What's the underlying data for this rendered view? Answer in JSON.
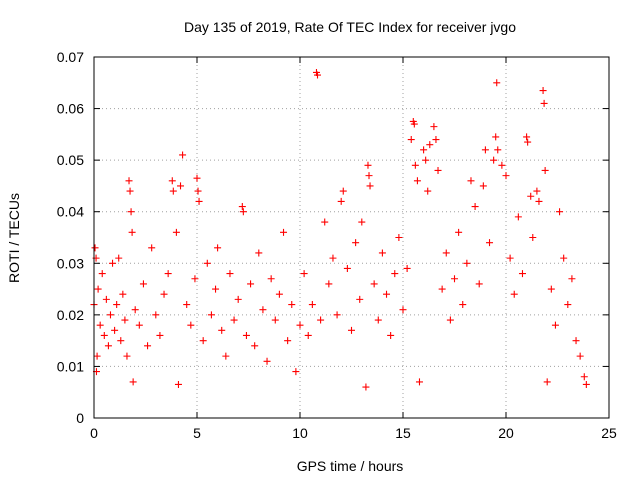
{
  "chart_data": {
    "type": "scatter",
    "title": "Day 135 of 2019, Rate Of TEC Index for receiver jvgo",
    "xlabel": "GPS time / hours",
    "ylabel": "ROTI / TECUs",
    "xlim": [
      0,
      25
    ],
    "ylim": [
      0,
      0.07
    ],
    "xticks": [
      0,
      5,
      10,
      15,
      20,
      25
    ],
    "xtick_labels": [
      "0",
      "5",
      "10",
      "15",
      "20",
      "25"
    ],
    "yticks": [
      0,
      0.01,
      0.02,
      0.03,
      0.04,
      0.05,
      0.06,
      0.07
    ],
    "ytick_labels": [
      "0",
      "0.01",
      "0.02",
      "0.03",
      "0.04",
      "0.05",
      "0.06",
      "0.07"
    ],
    "grid": true,
    "marker": "+",
    "marker_color": "#ff0000",
    "series": [
      {
        "name": "ROTI",
        "points": [
          [
            0.0,
            0.022
          ],
          [
            0.05,
            0.033
          ],
          [
            0.1,
            0.031
          ],
          [
            0.12,
            0.009
          ],
          [
            0.15,
            0.012
          ],
          [
            0.2,
            0.025
          ],
          [
            0.3,
            0.018
          ],
          [
            0.4,
            0.028
          ],
          [
            0.5,
            0.016
          ],
          [
            0.6,
            0.023
          ],
          [
            0.7,
            0.014
          ],
          [
            0.8,
            0.02
          ],
          [
            0.9,
            0.03
          ],
          [
            1.0,
            0.017
          ],
          [
            1.1,
            0.022
          ],
          [
            1.2,
            0.031
          ],
          [
            1.3,
            0.015
          ],
          [
            1.4,
            0.024
          ],
          [
            1.5,
            0.019
          ],
          [
            1.6,
            0.012
          ],
          [
            1.7,
            0.046
          ],
          [
            1.75,
            0.044
          ],
          [
            1.8,
            0.04
          ],
          [
            1.85,
            0.036
          ],
          [
            1.9,
            0.007
          ],
          [
            2.0,
            0.021
          ],
          [
            2.2,
            0.018
          ],
          [
            2.4,
            0.026
          ],
          [
            2.6,
            0.014
          ],
          [
            2.8,
            0.033
          ],
          [
            3.0,
            0.02
          ],
          [
            3.2,
            0.016
          ],
          [
            3.4,
            0.024
          ],
          [
            3.6,
            0.028
          ],
          [
            3.8,
            0.046
          ],
          [
            3.85,
            0.044
          ],
          [
            4.0,
            0.036
          ],
          [
            4.1,
            0.0065
          ],
          [
            4.2,
            0.045
          ],
          [
            4.3,
            0.051
          ],
          [
            4.5,
            0.022
          ],
          [
            4.7,
            0.018
          ],
          [
            4.9,
            0.027
          ],
          [
            5.0,
            0.0465
          ],
          [
            5.05,
            0.044
          ],
          [
            5.1,
            0.042
          ],
          [
            5.3,
            0.015
          ],
          [
            5.5,
            0.03
          ],
          [
            5.7,
            0.02
          ],
          [
            5.9,
            0.025
          ],
          [
            6.0,
            0.033
          ],
          [
            6.2,
            0.017
          ],
          [
            6.4,
            0.012
          ],
          [
            6.6,
            0.028
          ],
          [
            6.8,
            0.019
          ],
          [
            7.0,
            0.023
          ],
          [
            7.2,
            0.041
          ],
          [
            7.25,
            0.04
          ],
          [
            7.4,
            0.016
          ],
          [
            7.6,
            0.026
          ],
          [
            7.8,
            0.014
          ],
          [
            8.0,
            0.032
          ],
          [
            8.2,
            0.021
          ],
          [
            8.4,
            0.011
          ],
          [
            8.6,
            0.027
          ],
          [
            8.8,
            0.019
          ],
          [
            9.0,
            0.024
          ],
          [
            9.2,
            0.036
          ],
          [
            9.4,
            0.015
          ],
          [
            9.6,
            0.022
          ],
          [
            9.8,
            0.009
          ],
          [
            10.0,
            0.018
          ],
          [
            10.2,
            0.028
          ],
          [
            10.4,
            0.016
          ],
          [
            10.6,
            0.022
          ],
          [
            10.8,
            0.067
          ],
          [
            10.85,
            0.0665
          ],
          [
            11.0,
            0.019
          ],
          [
            11.2,
            0.038
          ],
          [
            11.4,
            0.026
          ],
          [
            11.6,
            0.031
          ],
          [
            11.8,
            0.02
          ],
          [
            12.0,
            0.042
          ],
          [
            12.1,
            0.044
          ],
          [
            12.3,
            0.029
          ],
          [
            12.5,
            0.017
          ],
          [
            12.7,
            0.034
          ],
          [
            12.9,
            0.023
          ],
          [
            13.0,
            0.038
          ],
          [
            13.2,
            0.006
          ],
          [
            13.3,
            0.049
          ],
          [
            13.35,
            0.047
          ],
          [
            13.4,
            0.045
          ],
          [
            13.6,
            0.026
          ],
          [
            13.8,
            0.019
          ],
          [
            14.0,
            0.032
          ],
          [
            14.2,
            0.024
          ],
          [
            14.4,
            0.016
          ],
          [
            14.6,
            0.028
          ],
          [
            14.8,
            0.035
          ],
          [
            15.0,
            0.021
          ],
          [
            15.2,
            0.029
          ],
          [
            15.4,
            0.054
          ],
          [
            15.5,
            0.0575
          ],
          [
            15.55,
            0.057
          ],
          [
            15.6,
            0.049
          ],
          [
            15.7,
            0.046
          ],
          [
            15.8,
            0.007
          ],
          [
            16.0,
            0.052
          ],
          [
            16.1,
            0.05
          ],
          [
            16.2,
            0.044
          ],
          [
            16.3,
            0.053
          ],
          [
            16.5,
            0.0565
          ],
          [
            16.6,
            0.054
          ],
          [
            16.7,
            0.048
          ],
          [
            16.9,
            0.025
          ],
          [
            17.1,
            0.032
          ],
          [
            17.3,
            0.019
          ],
          [
            17.5,
            0.027
          ],
          [
            17.7,
            0.036
          ],
          [
            17.9,
            0.022
          ],
          [
            18.1,
            0.03
          ],
          [
            18.3,
            0.046
          ],
          [
            18.5,
            0.041
          ],
          [
            18.7,
            0.026
          ],
          [
            18.9,
            0.045
          ],
          [
            19.0,
            0.052
          ],
          [
            19.2,
            0.034
          ],
          [
            19.4,
            0.05
          ],
          [
            19.5,
            0.0545
          ],
          [
            19.55,
            0.065
          ],
          [
            19.6,
            0.052
          ],
          [
            19.8,
            0.049
          ],
          [
            20.0,
            0.047
          ],
          [
            20.2,
            0.031
          ],
          [
            20.4,
            0.024
          ],
          [
            20.6,
            0.039
          ],
          [
            20.8,
            0.028
          ],
          [
            21.0,
            0.0545
          ],
          [
            21.05,
            0.0535
          ],
          [
            21.2,
            0.043
          ],
          [
            21.3,
            0.035
          ],
          [
            21.5,
            0.044
          ],
          [
            21.6,
            0.042
          ],
          [
            21.8,
            0.0635
          ],
          [
            21.85,
            0.061
          ],
          [
            21.9,
            0.048
          ],
          [
            22.0,
            0.007
          ],
          [
            22.2,
            0.025
          ],
          [
            22.4,
            0.018
          ],
          [
            22.6,
            0.04
          ],
          [
            22.8,
            0.031
          ],
          [
            23.0,
            0.022
          ],
          [
            23.2,
            0.027
          ],
          [
            23.4,
            0.015
          ],
          [
            23.6,
            0.012
          ],
          [
            23.8,
            0.008
          ],
          [
            23.9,
            0.0065
          ]
        ]
      }
    ]
  }
}
